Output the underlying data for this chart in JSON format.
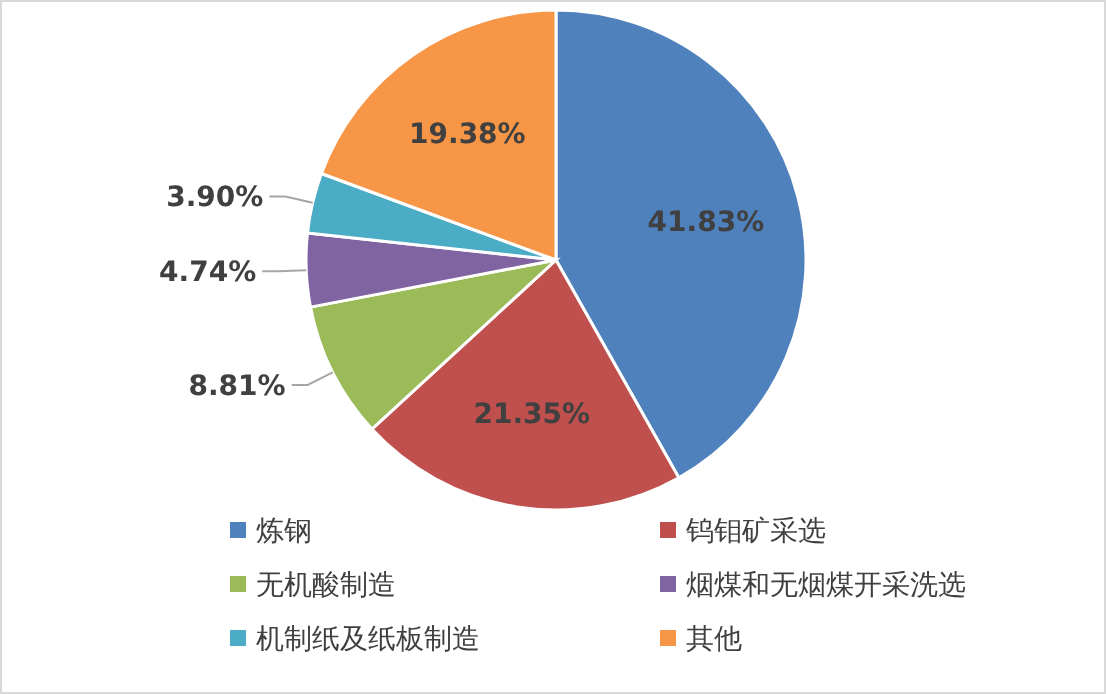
{
  "chart_data": {
    "type": "pie",
    "categories": [
      "炼钢",
      "钨钼矿采选",
      "无机酸制造",
      "烟煤和无烟煤开采洗选",
      "机制纸及纸板制造",
      "其他"
    ],
    "values": [
      41.83,
      21.35,
      8.81,
      4.74,
      3.9,
      19.38
    ],
    "value_labels": [
      "41.83%",
      "21.35%",
      "8.81%",
      "4.74%",
      "3.90%",
      "19.38%"
    ],
    "colors": [
      "#4f81bd",
      "#c0504d",
      "#9bbb59",
      "#8064a2",
      "#4bacc6",
      "#f79646"
    ],
    "legend": "bottom"
  }
}
